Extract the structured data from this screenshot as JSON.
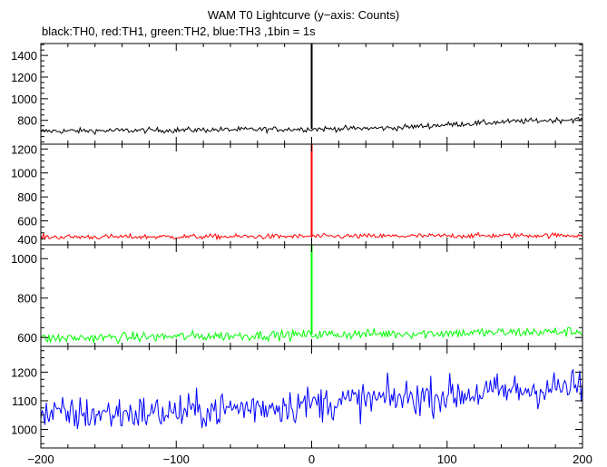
{
  "chart_data": {
    "type": "line",
    "title": "WAM T0 Lightcurve (y−axis: Counts)",
    "subtitle": "black:TH0, red:TH1, green:TH2, blue:TH3 ,1bin = 1s",
    "x_range": [
      -200,
      200
    ],
    "x_ticks": [
      -200,
      -100,
      0,
      100,
      200
    ],
    "x_tick_labels": [
      "−200",
      "−100",
      "0",
      "100",
      "200"
    ],
    "t0": 0,
    "panels": [
      {
        "series": "TH0",
        "color": "#000000",
        "ylim": [
          580,
          1510
        ],
        "y_ticks": [
          800,
          1000,
          1200,
          1400
        ],
        "baseline": [
          [
            -200,
            700
          ],
          [
            -100,
            710
          ],
          [
            0,
            720
          ],
          [
            60,
            730
          ],
          [
            100,
            760
          ],
          [
            150,
            790
          ],
          [
            200,
            810
          ]
        ],
        "noise": 18,
        "spike_peak": 1510
      },
      {
        "series": "TH1",
        "color": "#ff0000",
        "ylim": [
          400,
          1240
        ],
        "y_ticks": [
          400,
          600,
          800,
          1000,
          1200
        ],
        "baseline": [
          [
            -200,
            465
          ],
          [
            0,
            470
          ],
          [
            200,
            480
          ]
        ],
        "noise": 15,
        "spike_peak": 1240
      },
      {
        "series": "TH2",
        "color": "#00ff00",
        "ylim": [
          555,
          1070
        ],
        "y_ticks": [
          600,
          800,
          1000
        ],
        "baseline": [
          [
            -200,
            595
          ],
          [
            0,
            615
          ],
          [
            200,
            630
          ]
        ],
        "noise": 18,
        "spike_peak": 1070
      },
      {
        "series": "TH3",
        "color": "#0000ff",
        "ylim": [
          935,
          1290
        ],
        "y_ticks": [
          1000,
          1100,
          1200
        ],
        "baseline": [
          [
            -200,
            1050
          ],
          [
            -100,
            1060
          ],
          [
            0,
            1090
          ],
          [
            100,
            1120
          ],
          [
            200,
            1150
          ]
        ],
        "noise": 45,
        "spike_peak": null
      }
    ]
  }
}
